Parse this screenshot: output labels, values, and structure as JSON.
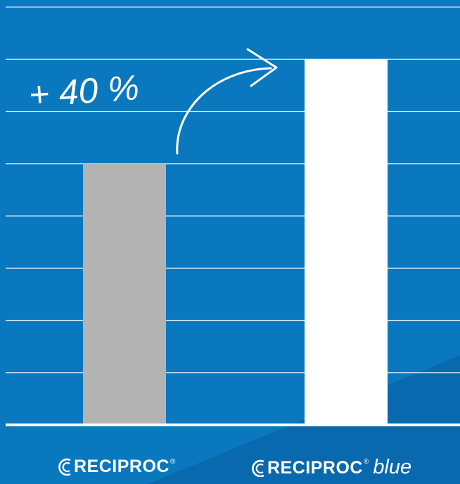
{
  "chart_data": {
    "type": "bar",
    "categories": [
      "RECIPROC",
      "RECIPROC blue"
    ],
    "values": [
      100,
      140
    ],
    "ylim": [
      0,
      160
    ],
    "grid": true,
    "bar_colors": [
      "#b3b3b3",
      "#ffffff"
    ],
    "annotation": "+ 40 %",
    "background_color": "#0a78be",
    "gridline_color": "#d6e9f6",
    "axis_color": "#ffffff"
  },
  "logos": [
    {
      "wordmark": "RECIPROC",
      "registered": "®",
      "suffix": "",
      "icon": "reciproc-logo-icon"
    },
    {
      "wordmark": "RECIPROC",
      "registered": "®",
      "suffix": "blue",
      "icon": "reciproc-logo-icon"
    }
  ]
}
